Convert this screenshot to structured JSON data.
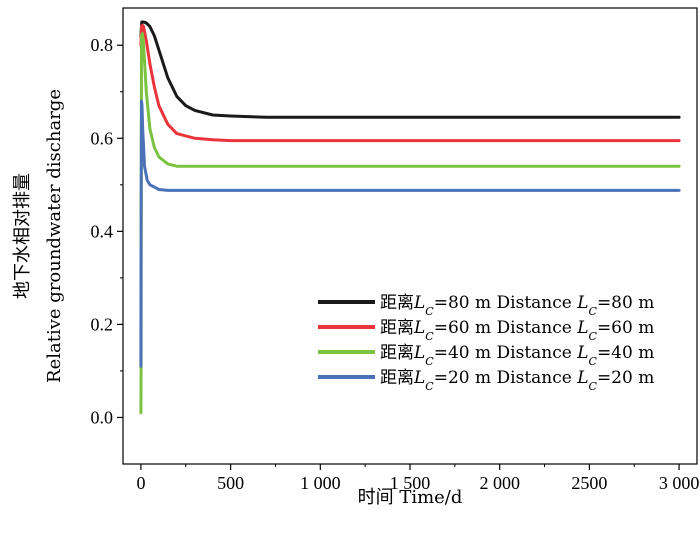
{
  "chart_data": {
    "type": "line",
    "title": "",
    "xlabel": "时间 Time/d",
    "ylabel_cn": "地下水相对排量",
    "ylabel_en": "Relative groundwater discharge",
    "xlim": [
      -100,
      3100
    ],
    "ylim": [
      -0.1,
      0.88
    ],
    "x_ticks": [
      0,
      500,
      1000,
      1500,
      2000,
      2500,
      3000
    ],
    "x_tick_labels": [
      "0",
      "500",
      "1 000",
      "1 500",
      "2 000",
      "2500",
      "3 000"
    ],
    "y_ticks": [
      0.0,
      0.2,
      0.4,
      0.6,
      0.8
    ],
    "y_tick_labels": [
      "0.0",
      "0.2",
      "0.4",
      "0.6",
      "0.8"
    ],
    "legend_position": "bottom-right",
    "series": [
      {
        "name": "Lc=80m",
        "legend_cn": "距离",
        "legend_mid": "=80 m Distance",
        "legend_end": "=80 m",
        "color": "#1a1a1a",
        "x": [
          0,
          5,
          15,
          30,
          50,
          75,
          100,
          150,
          200,
          250,
          300,
          400,
          500,
          700,
          1000,
          1500,
          2000,
          2500,
          3000
        ],
        "y": [
          0.82,
          0.85,
          0.85,
          0.848,
          0.84,
          0.82,
          0.79,
          0.73,
          0.69,
          0.67,
          0.66,
          0.65,
          0.648,
          0.645,
          0.645,
          0.645,
          0.645,
          0.645,
          0.645
        ]
      },
      {
        "name": "Lc=60m",
        "legend_cn": "距离",
        "legend_mid": "=60 m Distance",
        "legend_end": "=60 m",
        "color": "#e8343a",
        "x": [
          0,
          3,
          8,
          15,
          30,
          50,
          75,
          100,
          150,
          200,
          300,
          400,
          500,
          1000,
          1500,
          2000,
          2500,
          3000
        ],
        "y": [
          0.8,
          0.84,
          0.843,
          0.84,
          0.81,
          0.76,
          0.71,
          0.67,
          0.63,
          0.61,
          0.6,
          0.597,
          0.595,
          0.595,
          0.595,
          0.595,
          0.595,
          0.595
        ]
      },
      {
        "name": "Lc=40m",
        "legend_cn": "距离",
        "legend_mid": "=40 m Distance",
        "legend_end": "=40 m",
        "color": "#7cc242",
        "x": [
          0,
          1,
          3,
          8,
          15,
          30,
          50,
          75,
          100,
          150,
          200,
          300,
          400,
          500,
          1000,
          1500,
          2000,
          2500,
          3000
        ],
        "y": [
          0.01,
          0.12,
          0.82,
          0.825,
          0.8,
          0.7,
          0.62,
          0.58,
          0.56,
          0.545,
          0.54,
          0.54,
          0.54,
          0.54,
          0.54,
          0.54,
          0.54,
          0.54,
          0.54
        ]
      },
      {
        "name": "Lc=20m",
        "legend_cn": "距离",
        "legend_mid": "=20 m Distance",
        "legend_end": "=20 m",
        "color": "#4a72b8",
        "x": [
          0,
          1,
          3,
          6,
          10,
          20,
          35,
          50,
          75,
          100,
          150,
          200,
          300,
          500,
          1000,
          1500,
          2000,
          2500,
          3000
        ],
        "y": [
          0.11,
          0.45,
          0.68,
          0.67,
          0.62,
          0.54,
          0.51,
          0.5,
          0.495,
          0.49,
          0.488,
          0.488,
          0.488,
          0.488,
          0.488,
          0.488,
          0.488,
          0.488,
          0.488
        ]
      }
    ]
  }
}
